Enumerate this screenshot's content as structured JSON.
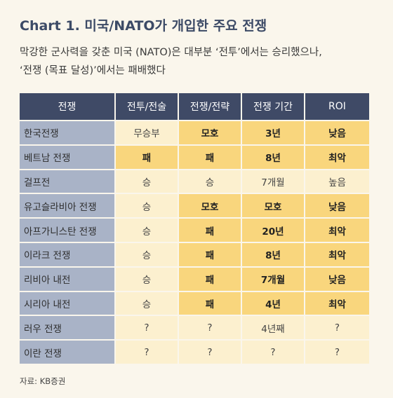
{
  "title": "Chart 1. 미국/NATO가 개입한 주요 전쟁",
  "subtitle": [
    "막강한 군사력을 갖춘 미국 (NATO)은 대부분 ‘전투’에서는 승리했으나,",
    "‘전쟁 (목표 달성)’에서는 패배했다"
  ],
  "table": {
    "headers": [
      "전쟁",
      "전투/전술",
      "전쟁/전략",
      "전쟁 기간",
      "ROI"
    ],
    "rows": [
      {
        "name": "한국전쟁",
        "cells": [
          {
            "text": "무승부",
            "style": "light"
          },
          {
            "text": "모호",
            "style": "bold"
          },
          {
            "text": "3년",
            "style": "bold"
          },
          {
            "text": "낮음",
            "style": "bold"
          }
        ]
      },
      {
        "name": "베트남 전쟁",
        "cells": [
          {
            "text": "패",
            "style": "bold"
          },
          {
            "text": "패",
            "style": "bold"
          },
          {
            "text": "8년",
            "style": "bold"
          },
          {
            "text": "최악",
            "style": "bold"
          }
        ]
      },
      {
        "name": "걸프전",
        "cells": [
          {
            "text": "승",
            "style": "light"
          },
          {
            "text": "승",
            "style": "light"
          },
          {
            "text": "7개월",
            "style": "light"
          },
          {
            "text": "높음",
            "style": "light"
          }
        ]
      },
      {
        "name": "유고슬라비아 전쟁",
        "cells": [
          {
            "text": "승",
            "style": "light"
          },
          {
            "text": "모호",
            "style": "bold"
          },
          {
            "text": "모호",
            "style": "bold"
          },
          {
            "text": "낮음",
            "style": "bold"
          }
        ]
      },
      {
        "name": "아프가니스탄 전쟁",
        "cells": [
          {
            "text": "승",
            "style": "light"
          },
          {
            "text": "패",
            "style": "bold"
          },
          {
            "text": "20년",
            "style": "bold"
          },
          {
            "text": "최악",
            "style": "bold"
          }
        ]
      },
      {
        "name": "이라크 전쟁",
        "cells": [
          {
            "text": "승",
            "style": "light"
          },
          {
            "text": "패",
            "style": "bold"
          },
          {
            "text": "8년",
            "style": "bold"
          },
          {
            "text": "최악",
            "style": "bold"
          }
        ]
      },
      {
        "name": "리비아 내전",
        "cells": [
          {
            "text": "승",
            "style": "light"
          },
          {
            "text": "패",
            "style": "bold"
          },
          {
            "text": "7개월",
            "style": "bold"
          },
          {
            "text": "낮음",
            "style": "bold"
          }
        ]
      },
      {
        "name": "시리아 내전",
        "cells": [
          {
            "text": "승",
            "style": "light"
          },
          {
            "text": "패",
            "style": "bold"
          },
          {
            "text": "4년",
            "style": "bold"
          },
          {
            "text": "최악",
            "style": "bold"
          }
        ]
      },
      {
        "name": "러우 전쟁",
        "cells": [
          {
            "text": "?",
            "style": "light"
          },
          {
            "text": "?",
            "style": "light"
          },
          {
            "text": "4년째",
            "style": "light"
          },
          {
            "text": "?",
            "style": "light"
          }
        ]
      },
      {
        "name": "이란 전쟁",
        "cells": [
          {
            "text": "?",
            "style": "light"
          },
          {
            "text": "?",
            "style": "light"
          },
          {
            "text": "?",
            "style": "light"
          },
          {
            "text": "?",
            "style": "light"
          }
        ]
      }
    ]
  },
  "source": "자료: KB증권",
  "colors": {
    "title": "#3c4a66",
    "header_bg": "#3f4a66",
    "name_col_bg": "#a9b3c7",
    "cell_light": "#fcf0cf",
    "cell_bold": "#f9d67d",
    "page_bg": "#faf6ec"
  }
}
